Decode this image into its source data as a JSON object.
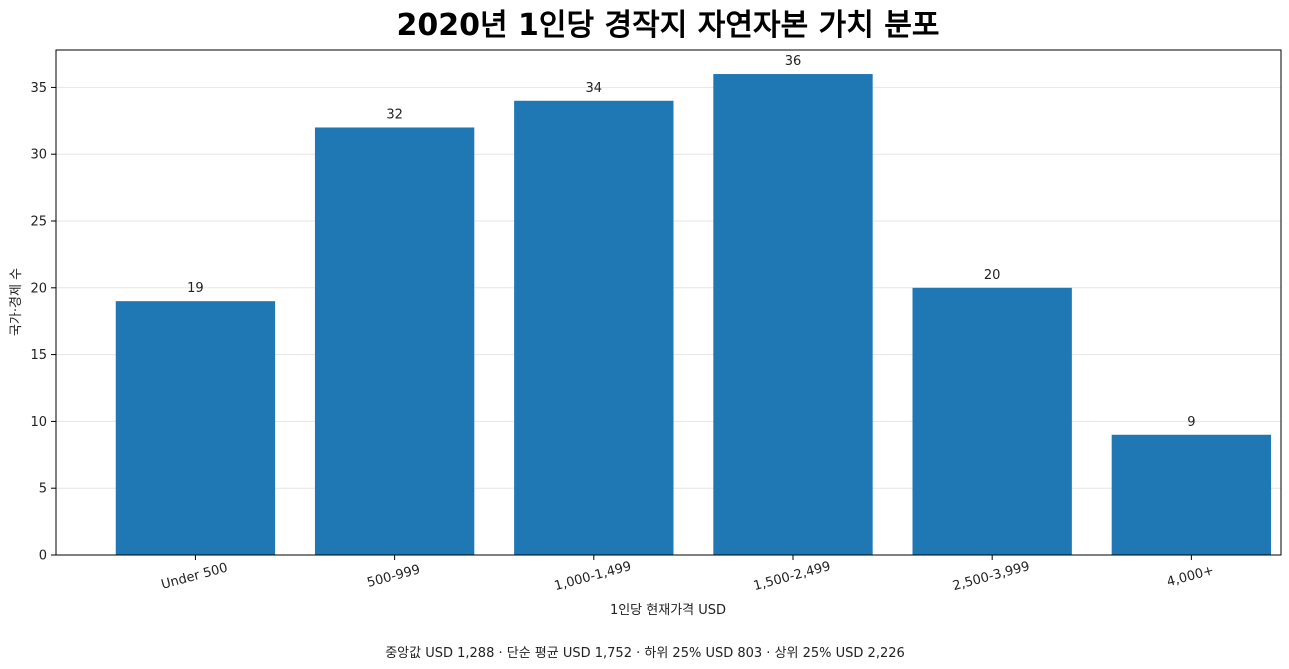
{
  "chart_data": {
    "type": "bar",
    "title": "2020년 1인당 경작지 자연자본 가치 분포",
    "xlabel": "1인당 현재가격 USD",
    "ylabel": "국가·경제 수",
    "categories": [
      "Under 500",
      "500-999",
      "1,000-1,499",
      "1,500-2,499",
      "2,500-3,999",
      "4,000+"
    ],
    "values": [
      19,
      32,
      34,
      36,
      20,
      9
    ],
    "data_labels": [
      "19",
      "32",
      "34",
      "36",
      "20",
      "9"
    ],
    "ylim": [
      0,
      37.8
    ],
    "yticks": [
      0,
      5,
      10,
      15,
      20,
      25,
      30,
      35
    ],
    "ytick_labels": [
      "0",
      "5",
      "10",
      "15",
      "20",
      "25",
      "30",
      "35"
    ],
    "grid": "y",
    "bar_color": "#1f77b4",
    "footnote": "중앙값 USD 1,288 · 단순 평균 USD 1,752 · 하위 25% USD 803 · 상위 25% USD 2,226"
  }
}
